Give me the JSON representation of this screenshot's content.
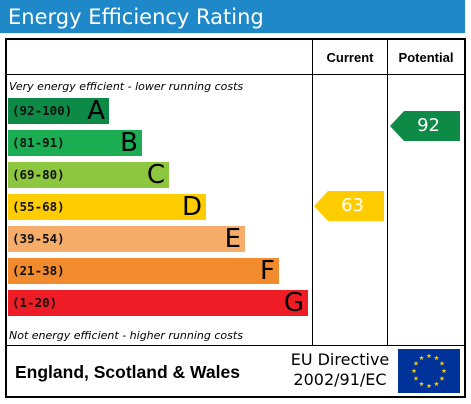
{
  "title": "Energy Efficiency Rating",
  "columns": {
    "current": "Current",
    "potential": "Potential"
  },
  "top_note": "Very energy efficient - lower running costs",
  "bottom_note": "Not energy efficient - higher running costs",
  "bands": [
    {
      "range": "(92-100)",
      "letter": "A",
      "color": "#0d8a45"
    },
    {
      "range": "(81-91)",
      "letter": "B",
      "color": "#1aad52"
    },
    {
      "range": "(69-80)",
      "letter": "C",
      "color": "#8dc63f"
    },
    {
      "range": "(55-68)",
      "letter": "D",
      "color": "#ffcc00"
    },
    {
      "range": "(39-54)",
      "letter": "E",
      "color": "#f7ad6a"
    },
    {
      "range": "(21-38)",
      "letter": "F",
      "color": "#f28a2e"
    },
    {
      "range": "(1-20)",
      "letter": "G",
      "color": "#ee1c25"
    }
  ],
  "current": {
    "value": "63",
    "color": "#ffcc00"
  },
  "potential": {
    "value": "92",
    "color": "#0d8a45"
  },
  "footer": {
    "region": "England, Scotland & Wales",
    "directive_line1": "EU Directive",
    "directive_line2": "2002/91/EC"
  },
  "flag_icon": "eu-flag-icon"
}
